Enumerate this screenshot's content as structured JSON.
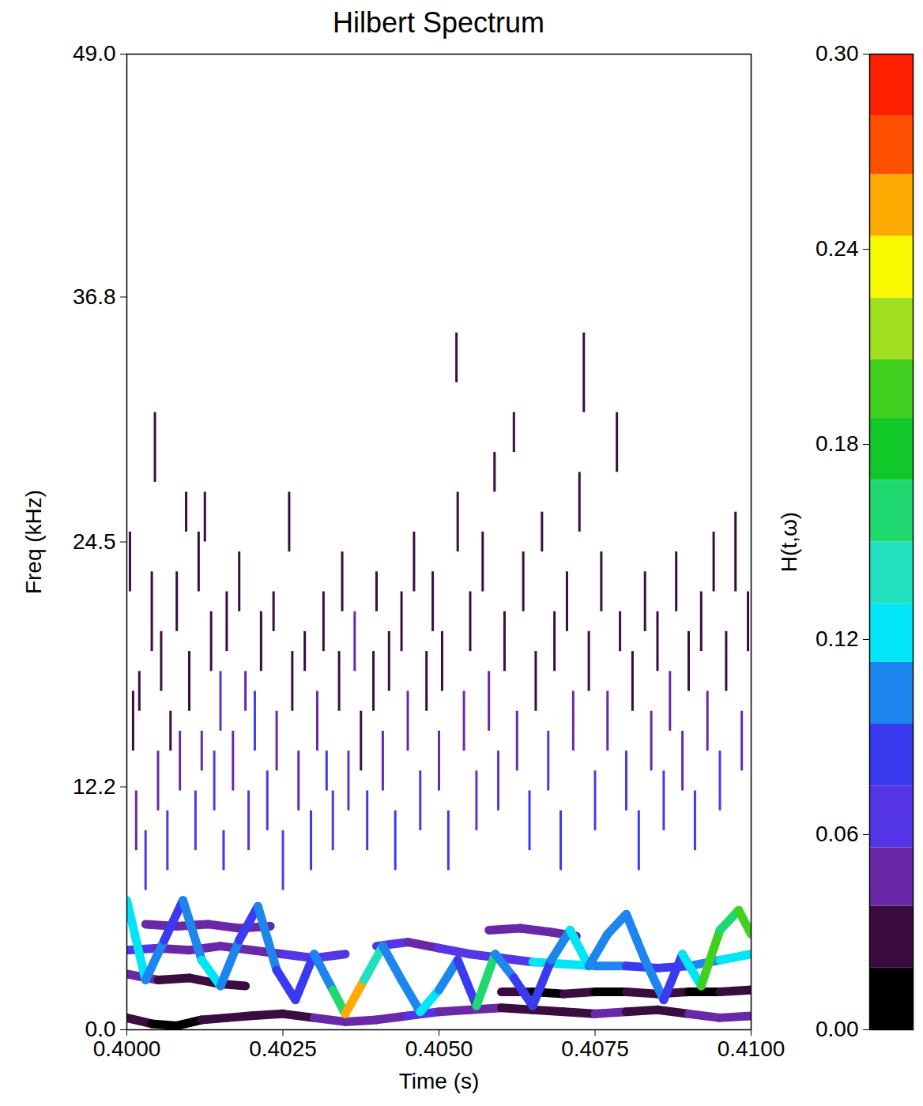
{
  "chart_data": {
    "type": "heatmap",
    "title": "Hilbert Spectrum",
    "x_label": "Time (s)",
    "y_label": "Freq (kHz)",
    "xlim": [
      0.4,
      0.41
    ],
    "ylim": [
      0,
      49
    ],
    "xticks": [
      {
        "value": 0.4,
        "label": "0.4000"
      },
      {
        "value": 0.4025,
        "label": "0.4025"
      },
      {
        "value": 0.405,
        "label": "0.4050"
      },
      {
        "value": 0.4075,
        "label": "0.4075"
      },
      {
        "value": 0.41,
        "label": "0.4100"
      }
    ],
    "yticks": [
      {
        "value": 0,
        "label": "0.0"
      },
      12.2,
      24.5,
      36.8,
      {
        "value": 49,
        "label": "49.0"
      }
    ],
    "colorbar": {
      "label": "H(t,ω)",
      "lim": [
        0,
        0.3
      ],
      "ticks": [
        {
          "value": 0,
          "label": "0.00"
        },
        0.06,
        0.12,
        0.18,
        0.24,
        {
          "value": 0.3,
          "label": "0.30"
        }
      ],
      "levels": [
        0,
        0.019,
        0.038,
        0.056,
        0.075,
        0.094,
        0.113,
        0.131,
        0.15,
        0.169,
        0.188,
        0.206,
        0.225,
        0.244,
        0.263,
        0.281,
        0.3
      ],
      "colors": [
        "#000000",
        "#3a0c40",
        "#6a28a8",
        "#5436e6",
        "#3a3af0",
        "#1c86ee",
        "#00e6f6",
        "#20e0c0",
        "#20d870",
        "#10c828",
        "#40d020",
        "#a0e020",
        "#f8f800",
        "#ffaa00",
        "#ff5000",
        "#ff2000"
      ]
    },
    "tracks": [
      {
        "t": [
          0.4,
          0.4004,
          0.4008,
          0.4012,
          0.4016,
          0.402,
          0.4025,
          0.403,
          0.4035,
          0.404,
          0.4045,
          0.405,
          0.4055,
          0.406,
          0.4065,
          0.407,
          0.4075,
          0.408,
          0.4085,
          0.409,
          0.4095,
          0.41
        ],
        "f": [
          0.6,
          0.3,
          0.2,
          0.5,
          0.6,
          0.7,
          0.8,
          0.6,
          0.4,
          0.5,
          0.7,
          0.9,
          1.0,
          1.1,
          1.0,
          0.9,
          0.8,
          0.9,
          1.0,
          0.8,
          0.6,
          0.7
        ],
        "H": [
          0.03,
          0.01,
          0.01,
          0.02,
          0.03,
          0.03,
          0.03,
          0.04,
          0.05,
          0.05,
          0.06,
          0.05,
          0.04,
          0.03,
          0.03,
          0.03,
          0.04,
          0.03,
          0.03,
          0.04,
          0.05,
          0.05
        ]
      },
      {
        "t": [
          0.4,
          0.4005,
          0.401,
          0.4015,
          0.4019
        ],
        "f": [
          2.8,
          2.5,
          2.6,
          2.3,
          2.2
        ],
        "H": [
          0.04,
          0.02,
          0.02,
          0.03,
          0.03
        ]
      },
      {
        "t": [
          0.406,
          0.4065,
          0.407,
          0.4075,
          0.408,
          0.4085,
          0.409,
          0.4095,
          0.41
        ],
        "f": [
          1.9,
          1.9,
          1.8,
          1.9,
          1.9,
          1.8,
          1.9,
          1.9,
          2.0
        ],
        "H": [
          0.02,
          0.01,
          0.02,
          0.01,
          0.02,
          0.02,
          0.01,
          0.03,
          0.04
        ]
      },
      {
        "t": [
          0.4,
          0.4005,
          0.401,
          0.4015,
          0.402,
          0.4025,
          0.403,
          0.4035
        ],
        "f": [
          4.0,
          4.1,
          4.0,
          4.2,
          4.0,
          3.8,
          3.6,
          3.8
        ],
        "H": [
          0.06,
          0.05,
          0.04,
          0.05,
          0.05,
          0.06,
          0.07,
          0.08
        ]
      },
      {
        "t": [
          0.404,
          0.4045,
          0.405,
          0.4055,
          0.406,
          0.4065,
          0.407,
          0.4075,
          0.408,
          0.4085,
          0.409,
          0.4095,
          0.41
        ],
        "f": [
          4.2,
          4.4,
          4.1,
          3.8,
          3.6,
          3.4,
          3.3,
          3.2,
          3.2,
          3.1,
          3.2,
          3.5,
          3.8
        ],
        "H": [
          0.06,
          0.05,
          0.06,
          0.07,
          0.06,
          0.12,
          0.13,
          0.11,
          0.09,
          0.08,
          0.1,
          0.12,
          0.1
        ]
      },
      {
        "t": [
          0.4003,
          0.4008,
          0.4013,
          0.4018,
          0.4023
        ],
        "f": [
          5.3,
          5.2,
          5.3,
          5.1,
          5.2
        ],
        "H": [
          0.04,
          0.04,
          0.04,
          0.05,
          0.04
        ]
      },
      {
        "t": [
          0.4058,
          0.4063,
          0.4068,
          0.4072
        ],
        "f": [
          5.0,
          5.1,
          4.9,
          4.7
        ],
        "H": [
          0.05,
          0.04,
          0.05,
          0.06
        ]
      },
      {
        "t": [
          0.4,
          0.4003,
          0.4006,
          0.4009,
          0.4012,
          0.4015,
          0.4018,
          0.4021,
          0.4024,
          0.4027,
          0.403,
          0.4033,
          0.4035,
          0.4038,
          0.4041,
          0.4044,
          0.4047,
          0.405,
          0.4053,
          0.4056,
          0.4059,
          0.4062,
          0.4065,
          0.4068,
          0.4071,
          0.4074,
          0.4077,
          0.408,
          0.4083,
          0.4086,
          0.4089,
          0.4092,
          0.4095,
          0.4098,
          0.41
        ],
        "f": [
          6.5,
          2.5,
          4.5,
          6.5,
          3.5,
          2.2,
          4.5,
          6.2,
          3.0,
          1.5,
          3.8,
          2.0,
          0.8,
          2.5,
          4.2,
          2.5,
          0.9,
          2.0,
          3.5,
          1.2,
          3.8,
          2.6,
          1.2,
          3.5,
          5.0,
          3.2,
          4.8,
          5.8,
          3.5,
          1.5,
          3.8,
          2.2,
          5.0,
          6.0,
          4.8
        ],
        "H": [
          0.12,
          0.1,
          0.09,
          0.11,
          0.12,
          0.1,
          0.09,
          0.11,
          0.09,
          0.08,
          0.1,
          0.15,
          0.25,
          0.14,
          0.1,
          0.11,
          0.13,
          0.1,
          0.09,
          0.16,
          0.1,
          0.09,
          0.08,
          0.1,
          0.12,
          0.11,
          0.1,
          0.11,
          0.1,
          0.09,
          0.12,
          0.2,
          0.16,
          0.2,
          0.14
        ]
      }
    ],
    "dashes": {
      "t": [
        0.40005,
        0.4001,
        0.40015,
        0.4002,
        0.4003,
        0.4004,
        0.40045,
        0.4005,
        0.40055,
        0.40065,
        0.4007,
        0.4008,
        0.40085,
        0.40095,
        0.401,
        0.4011,
        0.40115,
        0.4012,
        0.40125,
        0.40135,
        0.4014,
        0.4015,
        0.40155,
        0.4016,
        0.4017,
        0.4018,
        0.4019,
        0.40195,
        0.40205,
        0.40215,
        0.40225,
        0.40235,
        0.4024,
        0.4025,
        0.4026,
        0.40265,
        0.40275,
        0.40285,
        0.40295,
        0.40305,
        0.40315,
        0.4032,
        0.4033,
        0.4034,
        0.40345,
        0.40355,
        0.40365,
        0.40375,
        0.40385,
        0.40395,
        0.404,
        0.4041,
        0.4042,
        0.4043,
        0.4044,
        0.4045,
        0.4046,
        0.4047,
        0.4048,
        0.4049,
        0.405,
        0.40505,
        0.40515,
        0.40528,
        0.4053,
        0.4054,
        0.4055,
        0.4056,
        0.4057,
        0.4058,
        0.40589,
        0.40595,
        0.40605,
        0.4062,
        0.40625,
        0.40635,
        0.40645,
        0.40655,
        0.40665,
        0.40675,
        0.40685,
        0.40695,
        0.40705,
        0.40715,
        0.40725,
        0.40732,
        0.4074,
        0.4075,
        0.4076,
        0.4077,
        0.40785,
        0.4079,
        0.408,
        0.4081,
        0.4082,
        0.4083,
        0.4084,
        0.4085,
        0.4086,
        0.4087,
        0.4088,
        0.4089,
        0.409,
        0.4091,
        0.4092,
        0.4093,
        0.4094,
        0.4095,
        0.4096,
        0.40975,
        0.40985,
        0.40995
      ],
      "f_low": [
        22,
        14,
        9,
        16,
        7,
        19,
        27.5,
        11,
        17,
        8,
        14,
        20,
        12,
        25,
        16,
        9,
        22,
        13,
        24.5,
        18,
        11,
        15,
        8,
        19,
        12,
        21,
        16,
        9,
        14,
        18,
        10,
        20,
        13,
        7,
        24,
        16,
        11,
        18,
        8,
        14,
        19,
        12,
        9,
        16,
        21,
        11,
        18,
        13,
        9,
        16,
        21,
        12,
        17,
        8,
        19,
        14,
        22,
        10,
        16,
        20,
        12,
        17,
        8,
        32.5,
        24,
        14,
        19,
        10,
        22,
        15,
        27,
        11,
        18,
        29,
        13,
        21,
        9,
        16,
        24,
        12,
        18,
        8,
        20,
        14,
        25,
        31,
        17,
        10,
        21,
        14,
        28,
        19,
        11,
        16,
        8,
        20,
        13,
        18,
        10,
        15,
        21,
        12,
        17,
        9,
        19,
        14,
        22,
        11,
        17,
        22,
        13,
        19
      ],
      "f_high": [
        25,
        17,
        12,
        18,
        10,
        23,
        31,
        14,
        20,
        11,
        16,
        23,
        15,
        27,
        19,
        12,
        25,
        15,
        27,
        21,
        14,
        18,
        10,
        22,
        15,
        24,
        18,
        12,
        17,
        21,
        13,
        22,
        16,
        10,
        27,
        19,
        14,
        20,
        11,
        17,
        22,
        14,
        12,
        19,
        24,
        14,
        21,
        16,
        12,
        19,
        23,
        15,
        20,
        11,
        22,
        17,
        25,
        13,
        19,
        23,
        15,
        20,
        11,
        35,
        27,
        17,
        22,
        13,
        25,
        18,
        29,
        14,
        21,
        31,
        16,
        24,
        12,
        19,
        26,
        15,
        21,
        11,
        23,
        17,
        28,
        35,
        20,
        13,
        24,
        17,
        31,
        21,
        14,
        19,
        11,
        23,
        16,
        21,
        13,
        18,
        24,
        15,
        20,
        12,
        22,
        17,
        25,
        14,
        20,
        26,
        16,
        22
      ],
      "H": [
        0.03,
        0.03,
        0.05,
        0.03,
        0.06,
        0.03,
        0.03,
        0.04,
        0.03,
        0.07,
        0.03,
        0.03,
        0.05,
        0.03,
        0.03,
        0.07,
        0.03,
        0.04,
        0.03,
        0.03,
        0.06,
        0.07,
        0.08,
        0.03,
        0.05,
        0.03,
        0.04,
        0.07,
        0.08,
        0.03,
        0.06,
        0.03,
        0.04,
        0.07,
        0.03,
        0.03,
        0.05,
        0.03,
        0.08,
        0.05,
        0.03,
        0.09,
        0.07,
        0.03,
        0.03,
        0.06,
        0.04,
        0.03,
        0.07,
        0.03,
        0.03,
        0.05,
        0.03,
        0.08,
        0.03,
        0.04,
        0.03,
        0.07,
        0.03,
        0.03,
        0.05,
        0.03,
        0.09,
        0.03,
        0.03,
        0.04,
        0.03,
        0.07,
        0.03,
        0.05,
        0.03,
        0.06,
        0.03,
        0.03,
        0.04,
        0.03,
        0.08,
        0.03,
        0.03,
        0.06,
        0.03,
        0.09,
        0.03,
        0.05,
        0.03,
        0.03,
        0.03,
        0.07,
        0.03,
        0.04,
        0.03,
        0.03,
        0.06,
        0.03,
        0.08,
        0.03,
        0.05,
        0.03,
        0.07,
        0.04,
        0.03,
        0.05,
        0.03,
        0.08,
        0.03,
        0.04,
        0.03,
        0.07,
        0.03,
        0.03,
        0.05,
        0.03
      ]
    }
  }
}
